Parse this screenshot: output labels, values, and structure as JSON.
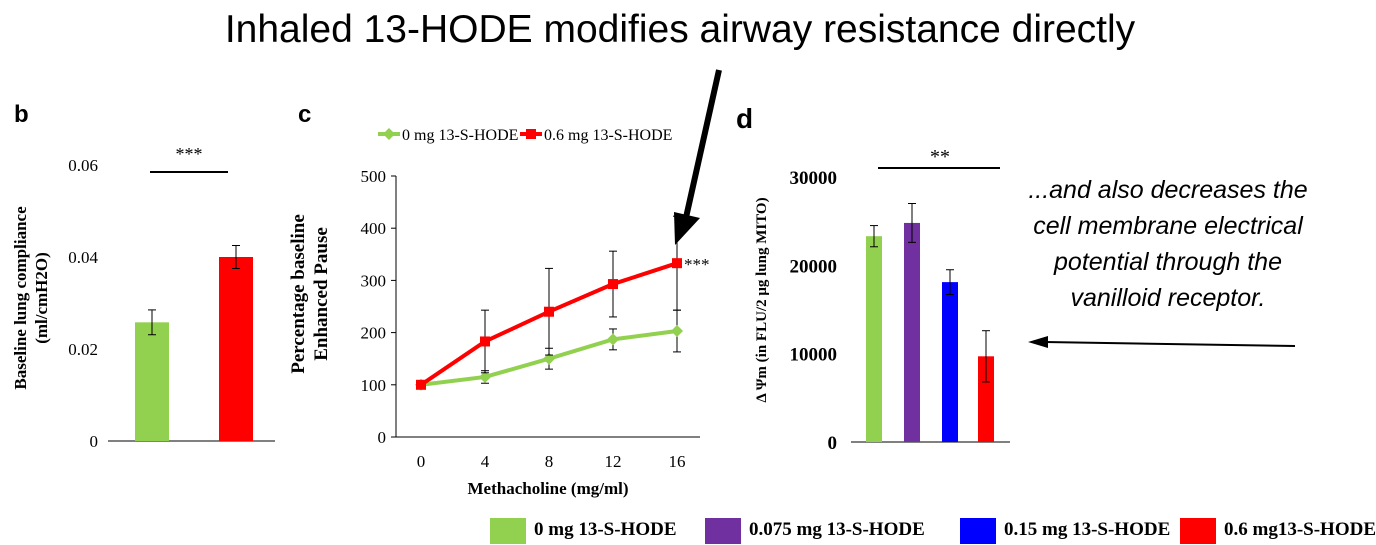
{
  "title": "Inhaled 13-HODE modifies airway resistance directly",
  "annotation_lines": [
    "...and also decreases the",
    "cell membrane electrical",
    "potential through the",
    "vanilloid receptor."
  ],
  "colors": {
    "green": "#92d050",
    "red": "#ff0000",
    "purple": "#7030a0",
    "blue": "#0000ff"
  },
  "chart_data": [
    {
      "panel": "b",
      "type": "bar",
      "categories": [
        "",
        ""
      ],
      "values": [
        0.0258,
        0.04
      ],
      "errors": [
        0.0027,
        0.0025
      ],
      "colors": [
        "#92d050",
        "#ff0000"
      ],
      "ylabel_lines": [
        "Baseline lung compliance",
        "(ml/cmH2O)"
      ],
      "ylim": [
        0,
        0.06
      ],
      "yticks": [
        "0",
        "0.02",
        "0.04",
        "0.06"
      ],
      "significance": "***"
    },
    {
      "panel": "c",
      "type": "line",
      "x": [
        0,
        4,
        8,
        12,
        16
      ],
      "xticks": [
        "0",
        "4",
        "8",
        "12",
        "16"
      ],
      "xlabel": "Methacholine (mg/ml)",
      "ylabel_lines": [
        "Percentage baseline",
        "Enhanced Pause"
      ],
      "ylim": [
        0,
        500
      ],
      "yticks": [
        "0",
        "100",
        "200",
        "300",
        "400",
        "500"
      ],
      "series": [
        {
          "name": "0 mg 13-S-HODE",
          "color": "#92d050",
          "values": [
            100,
            115,
            150,
            187,
            203
          ],
          "errors": [
            5,
            12,
            20,
            20,
            40
          ]
        },
        {
          "name": "0.6 mg 13-S-HODE",
          "color": "#ff0000",
          "values": [
            100,
            183,
            240,
            293,
            333
          ],
          "errors": [
            5,
            60,
            83,
            63,
            90
          ]
        }
      ],
      "significance": "***",
      "legend": "top"
    },
    {
      "panel": "d",
      "type": "bar",
      "categories": [
        "",
        "",
        "",
        ""
      ],
      "values": [
        23300,
        24800,
        18100,
        9700
      ],
      "errors": [
        1200,
        2200,
        1400,
        2900
      ],
      "colors": [
        "#92d050",
        "#7030a0",
        "#0000ff",
        "#ff0000"
      ],
      "ylabel": "Δ Ψm (in FLU/2 μg lung MITO)",
      "ylim": [
        0,
        30000
      ],
      "yticks": [
        "0",
        "10000",
        "20000",
        "30000"
      ],
      "significance": "**",
      "legend_entries": [
        "0 mg 13-S-HODE",
        "0.075 mg 13-S-HODE",
        "0.15 mg 13-S-HODE",
        "0.6 mg13-S-HODE"
      ],
      "legend": "bottom"
    }
  ]
}
